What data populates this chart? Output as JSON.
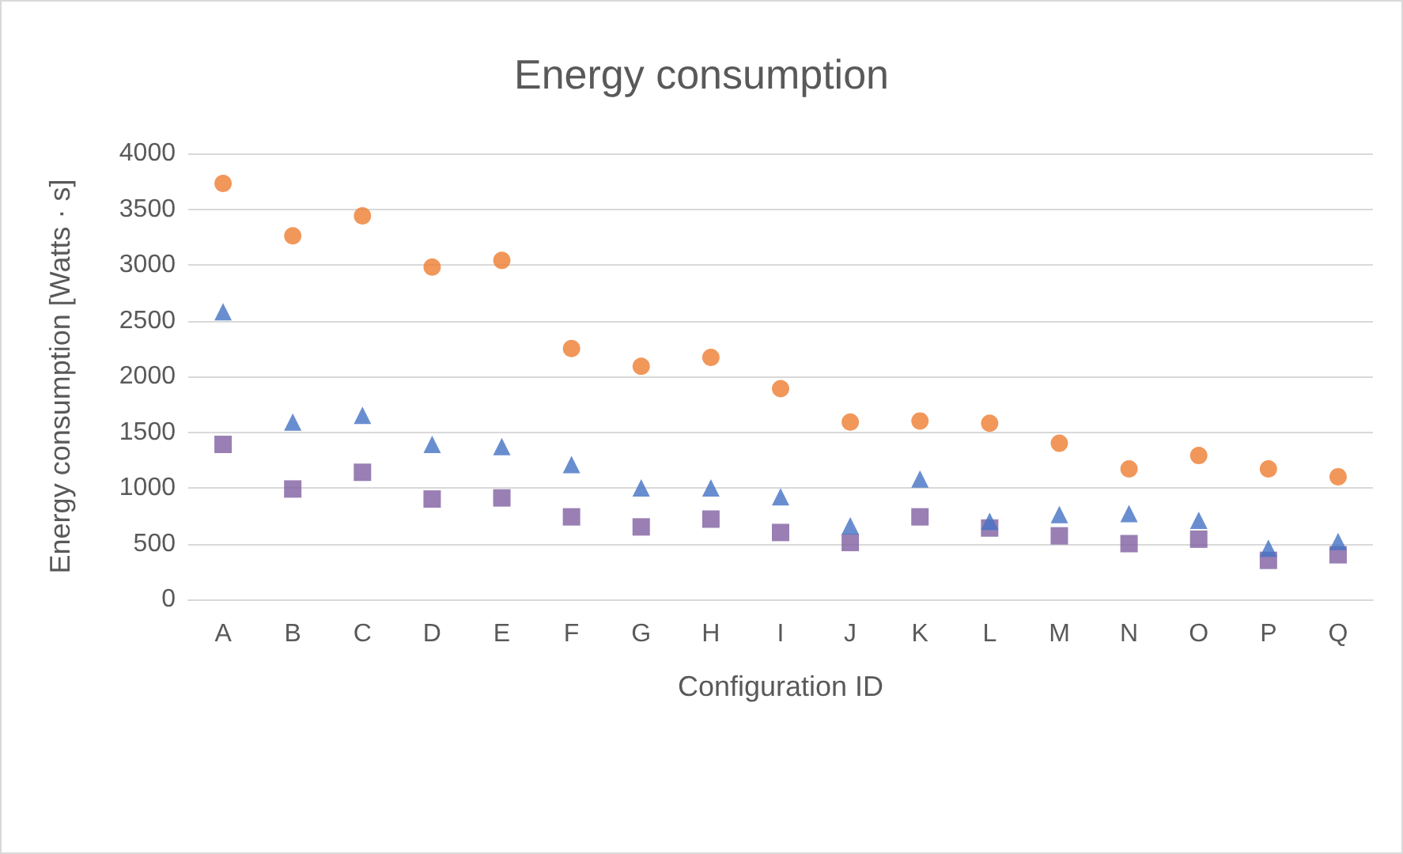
{
  "chart_data": {
    "type": "scatter",
    "title": "Energy consumption",
    "xlabel": "Configuration ID",
    "ylabel": "Energy consumption [Watts · s]",
    "categories": [
      "A",
      "B",
      "C",
      "D",
      "E",
      "F",
      "G",
      "H",
      "I",
      "J",
      "K",
      "L",
      "M",
      "N",
      "O",
      "P",
      "Q"
    ],
    "series": [
      {
        "color": "#7f5fa0",
        "marker": "square",
        "values": [
          1390,
          990,
          1140,
          900,
          910,
          740,
          650,
          720,
          600,
          510,
          740,
          640,
          570,
          500,
          540,
          350,
          400
        ]
      },
      {
        "color": "#ed7d31",
        "marker": "circle",
        "values": [
          3730,
          3260,
          3440,
          2980,
          3040,
          2250,
          2090,
          2170,
          1890,
          1590,
          1600,
          1580,
          1400,
          1170,
          1290,
          1170,
          1100
        ]
      },
      {
        "color": "#4472c4",
        "marker": "triangle",
        "values": [
          2580,
          1590,
          1650,
          1390,
          1370,
          1210,
          1000,
          1000,
          920,
          660,
          1080,
          700,
          760,
          770,
          710,
          460,
          520
        ]
      }
    ],
    "ylim": [
      0,
      4000
    ],
    "yticks": [
      0,
      500,
      1000,
      1500,
      2000,
      2500,
      3000,
      3500,
      4000
    ],
    "grid": "y"
  }
}
